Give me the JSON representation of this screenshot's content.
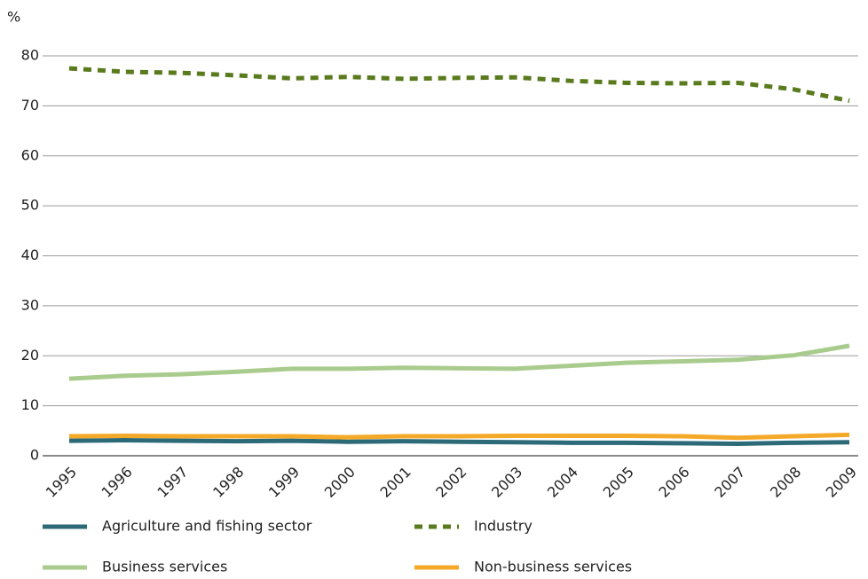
{
  "chart_data": {
    "type": "line",
    "y_label": "%",
    "categories": [
      "1995",
      "1996",
      "1997",
      "1998",
      "1999",
      "2000",
      "2001",
      "2002",
      "2003",
      "2004",
      "2005",
      "2006",
      "2007",
      "2008",
      "2009"
    ],
    "series": [
      {
        "name": "Agriculture and fishing sector",
        "color": "#2d6a78",
        "style": "solid",
        "values": [
          3.0,
          3.1,
          3.0,
          2.9,
          3.0,
          2.8,
          2.9,
          2.8,
          2.7,
          2.6,
          2.6,
          2.5,
          2.4,
          2.6,
          2.7
        ]
      },
      {
        "name": "Industry",
        "color": "#5a7a1e",
        "style": "dashed",
        "values": [
          77.5,
          76.8,
          76.6,
          76.1,
          75.5,
          75.8,
          75.4,
          75.6,
          75.7,
          75.0,
          74.6,
          74.5,
          74.6,
          73.3,
          71.0
        ]
      },
      {
        "name": "Business services",
        "color": "#a9cc8e",
        "style": "solid",
        "values": [
          15.4,
          16.0,
          16.3,
          16.8,
          17.4,
          17.4,
          17.6,
          17.5,
          17.4,
          18.0,
          18.6,
          18.9,
          19.2,
          20.1,
          22.0
        ]
      },
      {
        "name": "Non-business services",
        "color": "#f5a928",
        "style": "solid",
        "values": [
          3.9,
          4.0,
          3.9,
          3.9,
          3.9,
          3.7,
          3.9,
          3.9,
          4.0,
          4.0,
          4.0,
          3.9,
          3.6,
          3.9,
          4.2
        ]
      }
    ],
    "ylim": [
      0,
      80
    ],
    "yticks": [
      0,
      10,
      20,
      30,
      40,
      50,
      60,
      70,
      80
    ],
    "grid": true
  }
}
